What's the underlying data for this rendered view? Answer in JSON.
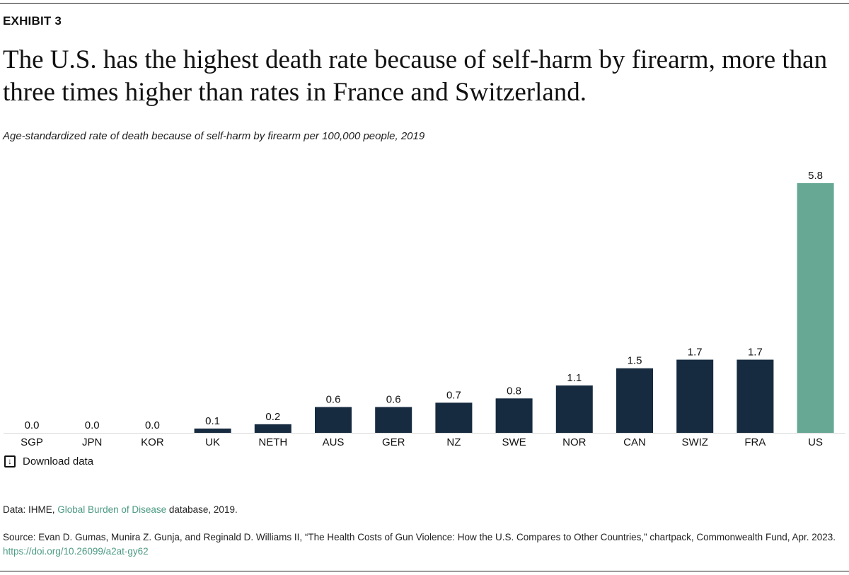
{
  "exhibit": "EXHIBIT 3",
  "title": "The U.S. has the highest death rate because of self-harm by firearm, more than three times higher than rates in France and Switzerland.",
  "download_label": "Download data",
  "data_note": {
    "prefix": "Data: IHME, ",
    "link": "Global Burden of Disease",
    "suffix": " database, 2019."
  },
  "source": {
    "text": "Source: Evan D. Gumas, Munira Z. Gunja, and Reginald D. Williams II, “The Health Costs of Gun Violence: How the U.S. Compares to Other Countries,” chartpack, Commonwealth Fund, Apr. 2023. ",
    "link": "https://doi.org/10.26099/a2at-gy62"
  },
  "colors": {
    "default": "#172b40",
    "highlight": "#66a894",
    "baseline": "#d9d9d9"
  },
  "chart_data": {
    "type": "bar",
    "subtitle": "Age-standardized rate of death because of self-harm by firearm per 100,000 people, 2019",
    "categories": [
      "SGP",
      "JPN",
      "KOR",
      "UK",
      "NETH",
      "AUS",
      "GER",
      "NZ",
      "SWE",
      "NOR",
      "CAN",
      "SWIZ",
      "FRA",
      "US"
    ],
    "values": [
      0.0,
      0.0,
      0.0,
      0.1,
      0.2,
      0.6,
      0.6,
      0.7,
      0.8,
      1.1,
      1.5,
      1.7,
      1.7,
      5.8
    ],
    "highlight": [
      "US"
    ],
    "grid": false,
    "ylim": [
      0,
      5.8
    ]
  }
}
